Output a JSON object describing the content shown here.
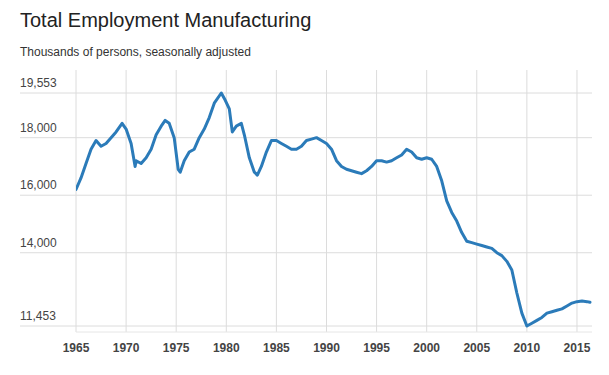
{
  "chart_data": {
    "type": "line",
    "title": "Total Employment Manufacturing",
    "subtitle": "Thousands of persons, seasonally adjusted",
    "color": "#2b7bb9",
    "grid": true,
    "xlim": [
      1965,
      2016.5
    ],
    "xticks": [
      1965,
      1970,
      1975,
      1980,
      1985,
      1990,
      1995,
      2000,
      2005,
      2010,
      2015
    ],
    "ylim": [
      11453,
      19553
    ],
    "yticks": [
      {
        "value": 11453,
        "label": "11,453"
      },
      {
        "value": 14000,
        "label": "14,000"
      },
      {
        "value": 16000,
        "label": "16,000"
      },
      {
        "value": 18000,
        "label": "18,000"
      },
      {
        "value": 19553,
        "label": "19,553"
      }
    ],
    "x": [
      1965.0,
      1965.5,
      1966.0,
      1966.5,
      1967.0,
      1967.5,
      1968.0,
      1968.5,
      1969.0,
      1969.6,
      1970.0,
      1970.5,
      1970.9,
      1971.0,
      1971.5,
      1972.0,
      1972.5,
      1973.0,
      1973.5,
      1973.9,
      1974.3,
      1974.8,
      1975.2,
      1975.4,
      1975.8,
      1976.3,
      1976.8,
      1977.3,
      1977.8,
      1978.3,
      1978.8,
      1979.5,
      1979.9,
      1980.3,
      1980.6,
      1981.0,
      1981.5,
      1981.8,
      1982.3,
      1982.8,
      1983.1,
      1983.5,
      1984.0,
      1984.5,
      1985.0,
      1985.5,
      1986.0,
      1986.5,
      1987.0,
      1987.5,
      1988.0,
      1988.5,
      1989.0,
      1989.5,
      1990.0,
      1990.5,
      1991.0,
      1991.5,
      1992.0,
      1992.5,
      1993.0,
      1993.5,
      1994.0,
      1994.5,
      1995.0,
      1995.5,
      1996.0,
      1996.5,
      1997.0,
      1997.5,
      1998.0,
      1998.5,
      1999.0,
      1999.5,
      2000.0,
      2000.5,
      2001.0,
      2001.5,
      2002.0,
      2002.5,
      2003.0,
      2003.5,
      2004.0,
      2004.5,
      2005.0,
      2005.5,
      2006.0,
      2006.5,
      2007.0,
      2007.5,
      2008.0,
      2008.5,
      2009.0,
      2009.5,
      2010.0,
      2010.5,
      2011.0,
      2011.5,
      2012.0,
      2012.5,
      2013.0,
      2013.5,
      2014.0,
      2014.5,
      2015.0,
      2015.5,
      2016.0,
      2016.3
    ],
    "values": [
      16200,
      16600,
      17100,
      17600,
      17900,
      17700,
      17800,
      18000,
      18200,
      18500,
      18300,
      17800,
      17000,
      17200,
      17100,
      17300,
      17600,
      18100,
      18400,
      18600,
      18500,
      18000,
      16900,
      16800,
      17200,
      17500,
      17600,
      18000,
      18300,
      18700,
      19200,
      19553,
      19300,
      19000,
      18200,
      18400,
      18500,
      18100,
      17300,
      16800,
      16700,
      17000,
      17500,
      17900,
      17900,
      17800,
      17700,
      17600,
      17600,
      17700,
      17900,
      17950,
      18000,
      17900,
      17800,
      17600,
      17200,
      17000,
      16900,
      16850,
      16800,
      16750,
      16850,
      17000,
      17200,
      17200,
      17150,
      17200,
      17300,
      17400,
      17600,
      17500,
      17300,
      17250,
      17300,
      17250,
      17000,
      16500,
      15800,
      15400,
      15100,
      14700,
      14400,
      14350,
      14300,
      14250,
      14200,
      14150,
      14000,
      13900,
      13700,
      13400,
      12600,
      11900,
      11453,
      11550,
      11650,
      11750,
      11900,
      11950,
      12000,
      12050,
      12150,
      12250,
      12300,
      12320,
      12300,
      12280
    ]
  }
}
